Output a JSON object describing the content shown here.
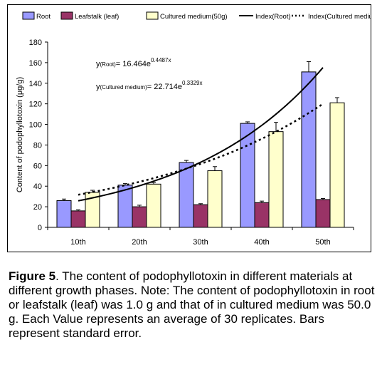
{
  "chart_data": {
    "type": "bar",
    "categories": [
      "10th",
      "20th",
      "30th",
      "40th",
      "50th"
    ],
    "ylabel": "Content of podophyllotoxin (μg/g)",
    "ylim": [
      0,
      180
    ],
    "yticks": [
      0,
      20,
      40,
      60,
      80,
      100,
      120,
      140,
      160,
      180
    ],
    "grid": false,
    "legend_position": "top",
    "series": [
      {
        "name": "Root",
        "values": [
          26,
          41,
          63,
          101,
          151
        ],
        "errors": [
          1.5,
          1.5,
          2,
          1.5,
          10
        ],
        "color": "#9999ff"
      },
      {
        "name": "Leafstalk (leaf)",
        "values": [
          16,
          20,
          22,
          24,
          27
        ],
        "errors": [
          1,
          1.5,
          1,
          1.5,
          1
        ],
        "color": "#993366"
      },
      {
        "name": "Cultured medium(50g)",
        "values": [
          34,
          42,
          55,
          93,
          121
        ],
        "errors": [
          2,
          1.5,
          4,
          9,
          5
        ],
        "color": "#ffffcc"
      }
    ],
    "fits": [
      {
        "name": "Index(Root)",
        "style": "solid",
        "a": 16.464,
        "b": 0.4487
      },
      {
        "name": "Index(Cultured medium)",
        "style": "dotted",
        "a": 22.714,
        "b": 0.3329
      }
    ],
    "annotations": {
      "root_prefix": "y",
      "root_sub": "(Root)",
      "root_body": "= 16.464e",
      "root_exp": "0.4487x",
      "medium_prefix": "y",
      "medium_sub": "(Cultured medium)",
      "medium_body": "= 22.714e",
      "medium_exp": "0.3329x"
    }
  },
  "caption": {
    "label": "Figure 5",
    "text": ". The content of podophyllotoxin in different materials at different growth phases. Note: The content of podophyllotoxin in root or leafstalk (leaf) was 1.0 g and that of in cultured medium was 50.0 g. Each Value represents an average of 30 replicates. Bars represent standard error."
  }
}
